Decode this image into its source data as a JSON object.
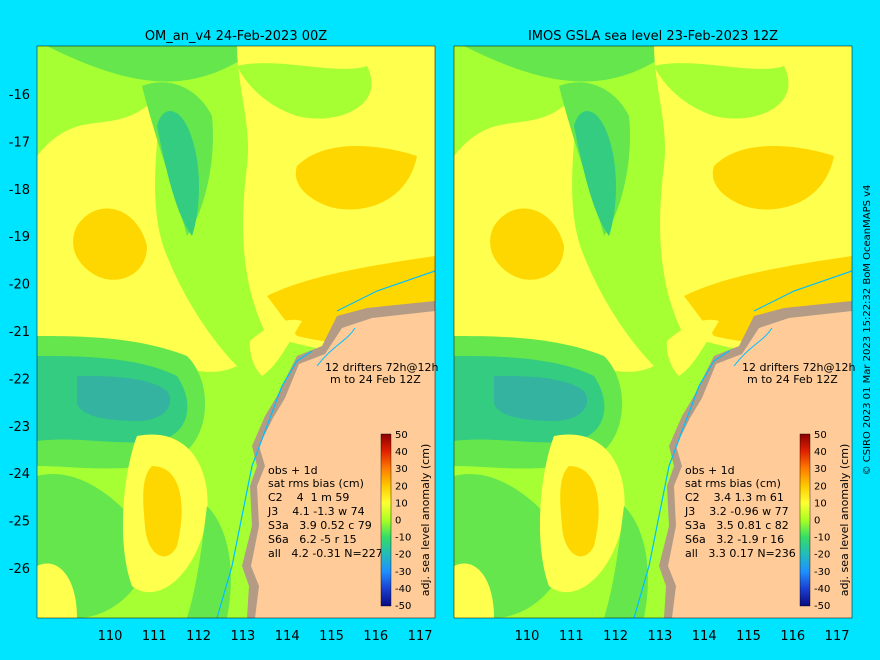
{
  "panels": [
    {
      "title": "OM_an_v4  24-Feb-2023 00Z",
      "drifters_line1": "12 drifters 72h@12h",
      "drifters_line2": "m  to 24 Feb 12Z",
      "stats": {
        "title": "obs + 1d",
        "header": "sat rms bias (cm)",
        "rows": [
          "C2    4  1 m 59",
          "J3    4.1 -1.3 w 74",
          "S3a   3.9 0.52 c 79",
          "S6a   6.2 -5 r 15",
          "all   4.2 -0.31 N=227"
        ]
      },
      "colorbar_label": "adj. sea level anomaly (cm)"
    },
    {
      "title": "IMOS GSLA sea level  23-Feb-2023 12Z",
      "drifters_line1": "12 drifters 72h@12h",
      "drifters_line2": "m  to 24 Feb 12Z",
      "stats": {
        "title": "obs + 1d",
        "header": "sat rms bias (cm)",
        "rows": [
          "C2    3.4 1.3 m 61",
          "J3    3.2 -0.96 w 77",
          "S3a   3.5 0.81 c 82",
          "S6a   3.2 -1.9 r 16",
          "all   3.3 0.17 N=236"
        ]
      },
      "colorbar_label": "adj. sea level anomaly (cm)"
    }
  ],
  "x_ticks": [
    "110",
    "111",
    "112",
    "113",
    "114",
    "115",
    "116",
    "117"
  ],
  "y_ticks": [
    "-16",
    "-17",
    "-18",
    "-19",
    "-20",
    "-21",
    "-22",
    "-23",
    "-24",
    "-25",
    "-26"
  ],
  "colorbar_ticks": [
    "50",
    "40",
    "30",
    "20",
    "10",
    "0",
    "-10",
    "-20",
    "-30",
    "-40",
    "-50"
  ],
  "copyright": "© CSIRO 2023   01 Mar 2023 15:22:32 BoM OceanMAPS v4",
  "colors": {
    "background": "#00e5ff",
    "land": "#ffcc99",
    "coast_shadow": "#b39b85",
    "contour_light_green": "#a6ff33",
    "contour_green": "#66e64d",
    "contour_yellow": "#ffff4d",
    "contour_gold": "#ffd700",
    "contour_orange": "#ffaa00",
    "contour_teal": "#33cc80",
    "contour_cyan": "#33b3a0"
  }
}
